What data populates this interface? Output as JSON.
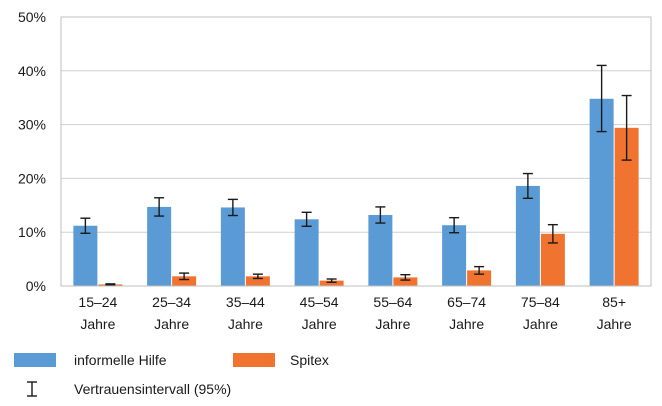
{
  "chart_data": {
    "type": "bar",
    "categories": [
      "15–24 Jahre",
      "25–34 Jahre",
      "35–44 Jahre",
      "45–54 Jahre",
      "55–64 Jahre",
      "65–74 Jahre",
      "75–84 Jahre",
      "85+ Jahre"
    ],
    "category_lines": [
      [
        "15–24",
        "Jahre"
      ],
      [
        "25–34",
        "Jahre"
      ],
      [
        "35–44",
        "Jahre"
      ],
      [
        "45–54",
        "Jahre"
      ],
      [
        "55–64",
        "Jahre"
      ],
      [
        "65–74",
        "Jahre"
      ],
      [
        "75–84",
        "Jahre"
      ],
      [
        "85+",
        "Jahre"
      ]
    ],
    "series": [
      {
        "name": "informelle Hilfe",
        "color": "#5b9bd5",
        "values": [
          11.2,
          14.7,
          14.6,
          12.4,
          13.2,
          11.3,
          18.6,
          34.8
        ],
        "ci_low": [
          9.8,
          13.0,
          13.1,
          11.1,
          11.7,
          9.9,
          16.3,
          28.7
        ],
        "ci_high": [
          12.6,
          16.4,
          16.1,
          13.7,
          14.7,
          12.7,
          20.9,
          41.0
        ]
      },
      {
        "name": "Spitex",
        "color": "#f07430",
        "values": [
          0.3,
          1.8,
          1.8,
          1.0,
          1.6,
          2.9,
          9.7,
          29.4
        ],
        "ci_low": [
          0.2,
          1.2,
          1.4,
          0.7,
          1.1,
          2.2,
          8.0,
          23.4
        ],
        "ci_high": [
          0.4,
          2.4,
          2.2,
          1.3,
          2.1,
          3.6,
          11.4,
          35.4
        ]
      }
    ],
    "y_ticks": [
      "0%",
      "10%",
      "20%",
      "30%",
      "40%",
      "50%"
    ],
    "ylim": [
      0,
      50
    ],
    "ylabel": "",
    "xlabel": "",
    "grid": true,
    "legend_position": "bottom-left",
    "ci_legend_label": "Vertrauensintervall (95%)"
  }
}
